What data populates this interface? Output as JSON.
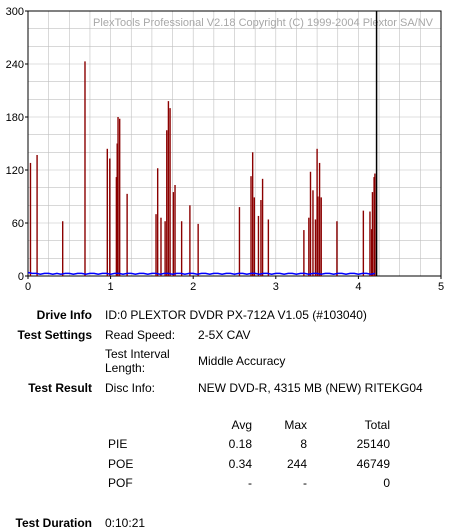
{
  "chart_data": {
    "type": "bar",
    "watermark": "PlexTools Professional V2.18 Copyright (C) 1999-2004 Plextor SA/NV",
    "xlim": [
      0,
      5
    ],
    "ylim": [
      0,
      300
    ],
    "x_ticks": [
      0,
      1,
      2,
      3,
      4,
      5
    ],
    "y_ticks": [
      0,
      60,
      120,
      180,
      240,
      300
    ],
    "grid": true,
    "end_marker_x": 4.22,
    "colors": {
      "poe": "#8b0000",
      "pie": "#0000ff",
      "grid": "#c0c0c0",
      "end": "#000000"
    },
    "series": [
      {
        "name": "POE",
        "points": [
          [
            0.03,
            128
          ],
          [
            0.11,
            137
          ],
          [
            0.42,
            62
          ],
          [
            0.69,
            243
          ],
          [
            0.96,
            144
          ],
          [
            0.99,
            133
          ],
          [
            1.07,
            112
          ],
          [
            1.08,
            150
          ],
          [
            1.09,
            180
          ],
          [
            1.11,
            178
          ],
          [
            1.2,
            93
          ],
          [
            1.55,
            70
          ],
          [
            1.57,
            122
          ],
          [
            1.61,
            66
          ],
          [
            1.66,
            62
          ],
          [
            1.68,
            165
          ],
          [
            1.7,
            198
          ],
          [
            1.72,
            190
          ],
          [
            1.76,
            95
          ],
          [
            1.78,
            103
          ],
          [
            1.86,
            62
          ],
          [
            1.96,
            80
          ],
          [
            2.06,
            59
          ],
          [
            2.56,
            78
          ],
          [
            2.7,
            113
          ],
          [
            2.72,
            140
          ],
          [
            2.74,
            89
          ],
          [
            2.79,
            68
          ],
          [
            2.82,
            86
          ],
          [
            2.84,
            110
          ],
          [
            2.91,
            64
          ],
          [
            3.34,
            52
          ],
          [
            3.4,
            66
          ],
          [
            3.42,
            118
          ],
          [
            3.45,
            97
          ],
          [
            3.48,
            64
          ],
          [
            3.5,
            144
          ],
          [
            3.51,
            90
          ],
          [
            3.53,
            128
          ],
          [
            3.55,
            89
          ],
          [
            3.74,
            62
          ],
          [
            4.06,
            74
          ],
          [
            4.14,
            73
          ],
          [
            4.16,
            53
          ],
          [
            4.17,
            95
          ],
          [
            4.19,
            112
          ],
          [
            4.2,
            116
          ]
        ]
      },
      {
        "name": "PIE",
        "points": [
          [
            0.0,
            4
          ],
          [
            0.05,
            3
          ],
          [
            0.1,
            3
          ],
          [
            0.15,
            2
          ],
          [
            0.2,
            3
          ],
          [
            0.25,
            3
          ],
          [
            0.3,
            2
          ],
          [
            0.35,
            3
          ],
          [
            0.4,
            2
          ],
          [
            0.45,
            3
          ],
          [
            0.5,
            3
          ],
          [
            0.55,
            2
          ],
          [
            0.6,
            3
          ],
          [
            0.65,
            3
          ],
          [
            0.7,
            2
          ],
          [
            0.75,
            3
          ],
          [
            0.8,
            3
          ],
          [
            0.85,
            2
          ],
          [
            0.9,
            3
          ],
          [
            0.95,
            3
          ],
          [
            1.0,
            2
          ],
          [
            1.05,
            3
          ],
          [
            1.1,
            3
          ],
          [
            1.15,
            2
          ],
          [
            1.2,
            3
          ],
          [
            1.25,
            3
          ],
          [
            1.3,
            2
          ],
          [
            1.35,
            3
          ],
          [
            1.4,
            3
          ],
          [
            1.45,
            2
          ],
          [
            1.5,
            3
          ],
          [
            1.55,
            3
          ],
          [
            1.6,
            2
          ],
          [
            1.65,
            3
          ],
          [
            1.7,
            3
          ],
          [
            1.75,
            2
          ],
          [
            1.8,
            3
          ],
          [
            1.85,
            3
          ],
          [
            1.9,
            2
          ],
          [
            1.95,
            3
          ],
          [
            2.0,
            3
          ],
          [
            2.05,
            2
          ],
          [
            2.1,
            3
          ],
          [
            2.15,
            3
          ],
          [
            2.2,
            2
          ],
          [
            2.25,
            3
          ],
          [
            2.3,
            3
          ],
          [
            2.35,
            2
          ],
          [
            2.4,
            3
          ],
          [
            2.45,
            3
          ],
          [
            2.5,
            2
          ],
          [
            2.55,
            3
          ],
          [
            2.6,
            3
          ],
          [
            2.65,
            2
          ],
          [
            2.7,
            3
          ],
          [
            2.75,
            3
          ],
          [
            2.8,
            2
          ],
          [
            2.85,
            3
          ],
          [
            2.9,
            3
          ],
          [
            2.95,
            2
          ],
          [
            3.0,
            3
          ],
          [
            3.05,
            3
          ],
          [
            3.1,
            2
          ],
          [
            3.15,
            3
          ],
          [
            3.2,
            3
          ],
          [
            3.25,
            2
          ],
          [
            3.3,
            3
          ],
          [
            3.35,
            3
          ],
          [
            3.4,
            2
          ],
          [
            3.45,
            3
          ],
          [
            3.5,
            3
          ],
          [
            3.55,
            2
          ],
          [
            3.6,
            3
          ],
          [
            3.65,
            3
          ],
          [
            3.7,
            2
          ],
          [
            3.75,
            3
          ],
          [
            3.8,
            3
          ],
          [
            3.85,
            2
          ],
          [
            3.9,
            3
          ],
          [
            3.95,
            3
          ],
          [
            4.0,
            2
          ],
          [
            4.05,
            3
          ],
          [
            4.1,
            3
          ],
          [
            4.15,
            2
          ],
          [
            4.2,
            3
          ]
        ]
      }
    ]
  },
  "info": {
    "drive_label": "Drive Info",
    "drive_value": "ID:0 PLEXTOR DVDR PX-712A V1.05 (#103040)",
    "settings_label": "Test Settings",
    "read_speed_label": "Read Speed:",
    "read_speed_value": "2-5X CAV",
    "interval_label_1": "Test Interval",
    "interval_label_2": "Length:",
    "interval_value": "Middle Accuracy",
    "result_label": "Test Result",
    "disc_label": "Disc Info:",
    "disc_value": "NEW DVD-R, 4315 MB (NEW) RITEKG04",
    "duration_label": "Test Duration",
    "duration_value": "0:10:21"
  },
  "stats": {
    "col_avg": "Avg",
    "col_max": "Max",
    "col_total": "Total",
    "rows": [
      {
        "name": "PIE",
        "avg": "0.18",
        "max": "8",
        "total": "25140"
      },
      {
        "name": "POE",
        "avg": "0.34",
        "max": "244",
        "total": "46749"
      },
      {
        "name": "POF",
        "avg": "-",
        "max": "-",
        "total": "0"
      }
    ]
  }
}
